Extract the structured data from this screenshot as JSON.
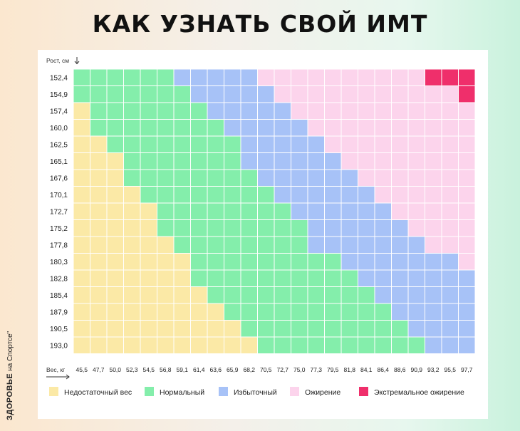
{
  "title": "КАК УЗНАТЬ СВОЙ ИМТ",
  "brand": {
    "name": "ЗДОРОВЬЕ",
    "suffix": "на Спортсе\""
  },
  "colors": {
    "underweight": "#fbe9a6",
    "normal": "#84eeab",
    "overweight": "#a7c2f7",
    "obese": "#fcd4ec",
    "extreme": "#ef2f6b"
  },
  "chart_data": {
    "type": "heatmap",
    "title": "КАК УЗНАТЬ СВОЙ ИМТ",
    "ylabel": "Рост, см",
    "xlabel": "Вес, кг",
    "y_ticks": [
      "152,4",
      "154,9",
      "157,4",
      "160,0",
      "162,5",
      "165,1",
      "167,6",
      "170,1",
      "172,7",
      "175,2",
      "177,8",
      "180,3",
      "182,8",
      "185,4",
      "187,9",
      "190,5",
      "193,0"
    ],
    "x_ticks": [
      "45,5",
      "47,7",
      "50,0",
      "52,3",
      "54,5",
      "56,8",
      "59,1",
      "61,4",
      "63,6",
      "65,9",
      "68,2",
      "70,5",
      "72,7",
      "75,0",
      "77,3",
      "79,5",
      "81,8",
      "84,1",
      "86,4",
      "88,6",
      "90,9",
      "93,2",
      "95,5",
      "97,7"
    ],
    "legend": [
      {
        "key": "underweight",
        "label": "Недостаточный вес"
      },
      {
        "key": "normal",
        "label": "Нормальный"
      },
      {
        "key": "overweight",
        "label": "Избыточный"
      },
      {
        "key": "obese",
        "label": "Ожирение"
      },
      {
        "key": "extreme",
        "label": "Экстремальное ожирение"
      }
    ],
    "legend_placement": "bottom",
    "categories_grid": [
      [
        1,
        1,
        1,
        1,
        1,
        1,
        2,
        2,
        2,
        2,
        2,
        3,
        3,
        3,
        3,
        3,
        3,
        3,
        3,
        3,
        3,
        4,
        4,
        4
      ],
      [
        1,
        1,
        1,
        1,
        1,
        1,
        1,
        2,
        2,
        2,
        2,
        2,
        3,
        3,
        3,
        3,
        3,
        3,
        3,
        3,
        3,
        3,
        3,
        4
      ],
      [
        0,
        1,
        1,
        1,
        1,
        1,
        1,
        1,
        2,
        2,
        2,
        2,
        2,
        3,
        3,
        3,
        3,
        3,
        3,
        3,
        3,
        3,
        3,
        3
      ],
      [
        0,
        1,
        1,
        1,
        1,
        1,
        1,
        1,
        1,
        2,
        2,
        2,
        2,
        2,
        3,
        3,
        3,
        3,
        3,
        3,
        3,
        3,
        3,
        3
      ],
      [
        0,
        0,
        1,
        1,
        1,
        1,
        1,
        1,
        1,
        1,
        2,
        2,
        2,
        2,
        2,
        3,
        3,
        3,
        3,
        3,
        3,
        3,
        3,
        3
      ],
      [
        0,
        0,
        0,
        1,
        1,
        1,
        1,
        1,
        1,
        1,
        2,
        2,
        2,
        2,
        2,
        2,
        3,
        3,
        3,
        3,
        3,
        3,
        3,
        3
      ],
      [
        0,
        0,
        0,
        1,
        1,
        1,
        1,
        1,
        1,
        1,
        1,
        2,
        2,
        2,
        2,
        2,
        2,
        3,
        3,
        3,
        3,
        3,
        3,
        3
      ],
      [
        0,
        0,
        0,
        0,
        1,
        1,
        1,
        1,
        1,
        1,
        1,
        1,
        2,
        2,
        2,
        2,
        2,
        2,
        3,
        3,
        3,
        3,
        3,
        3
      ],
      [
        0,
        0,
        0,
        0,
        0,
        1,
        1,
        1,
        1,
        1,
        1,
        1,
        1,
        2,
        2,
        2,
        2,
        2,
        2,
        3,
        3,
        3,
        3,
        3
      ],
      [
        0,
        0,
        0,
        0,
        0,
        1,
        1,
        1,
        1,
        1,
        1,
        1,
        1,
        1,
        2,
        2,
        2,
        2,
        2,
        2,
        3,
        3,
        3,
        3
      ],
      [
        0,
        0,
        0,
        0,
        0,
        0,
        1,
        1,
        1,
        1,
        1,
        1,
        1,
        1,
        2,
        2,
        2,
        2,
        2,
        2,
        2,
        3,
        3,
        3
      ],
      [
        0,
        0,
        0,
        0,
        0,
        0,
        0,
        1,
        1,
        1,
        1,
        1,
        1,
        1,
        1,
        1,
        2,
        2,
        2,
        2,
        2,
        2,
        2,
        3
      ],
      [
        0,
        0,
        0,
        0,
        0,
        0,
        0,
        1,
        1,
        1,
        1,
        1,
        1,
        1,
        1,
        1,
        1,
        2,
        2,
        2,
        2,
        2,
        2,
        2
      ],
      [
        0,
        0,
        0,
        0,
        0,
        0,
        0,
        0,
        1,
        1,
        1,
        1,
        1,
        1,
        1,
        1,
        1,
        1,
        2,
        2,
        2,
        2,
        2,
        2
      ],
      [
        0,
        0,
        0,
        0,
        0,
        0,
        0,
        0,
        0,
        1,
        1,
        1,
        1,
        1,
        1,
        1,
        1,
        1,
        1,
        2,
        2,
        2,
        2,
        2
      ],
      [
        0,
        0,
        0,
        0,
        0,
        0,
        0,
        0,
        0,
        0,
        1,
        1,
        1,
        1,
        1,
        1,
        1,
        1,
        1,
        1,
        2,
        2,
        2,
        2
      ],
      [
        0,
        0,
        0,
        0,
        0,
        0,
        0,
        0,
        0,
        0,
        0,
        1,
        1,
        1,
        1,
        1,
        1,
        1,
        1,
        1,
        1,
        2,
        2,
        2
      ]
    ],
    "category_keys": [
      "underweight",
      "normal",
      "overweight",
      "obese",
      "extreme"
    ],
    "grid": false
  }
}
